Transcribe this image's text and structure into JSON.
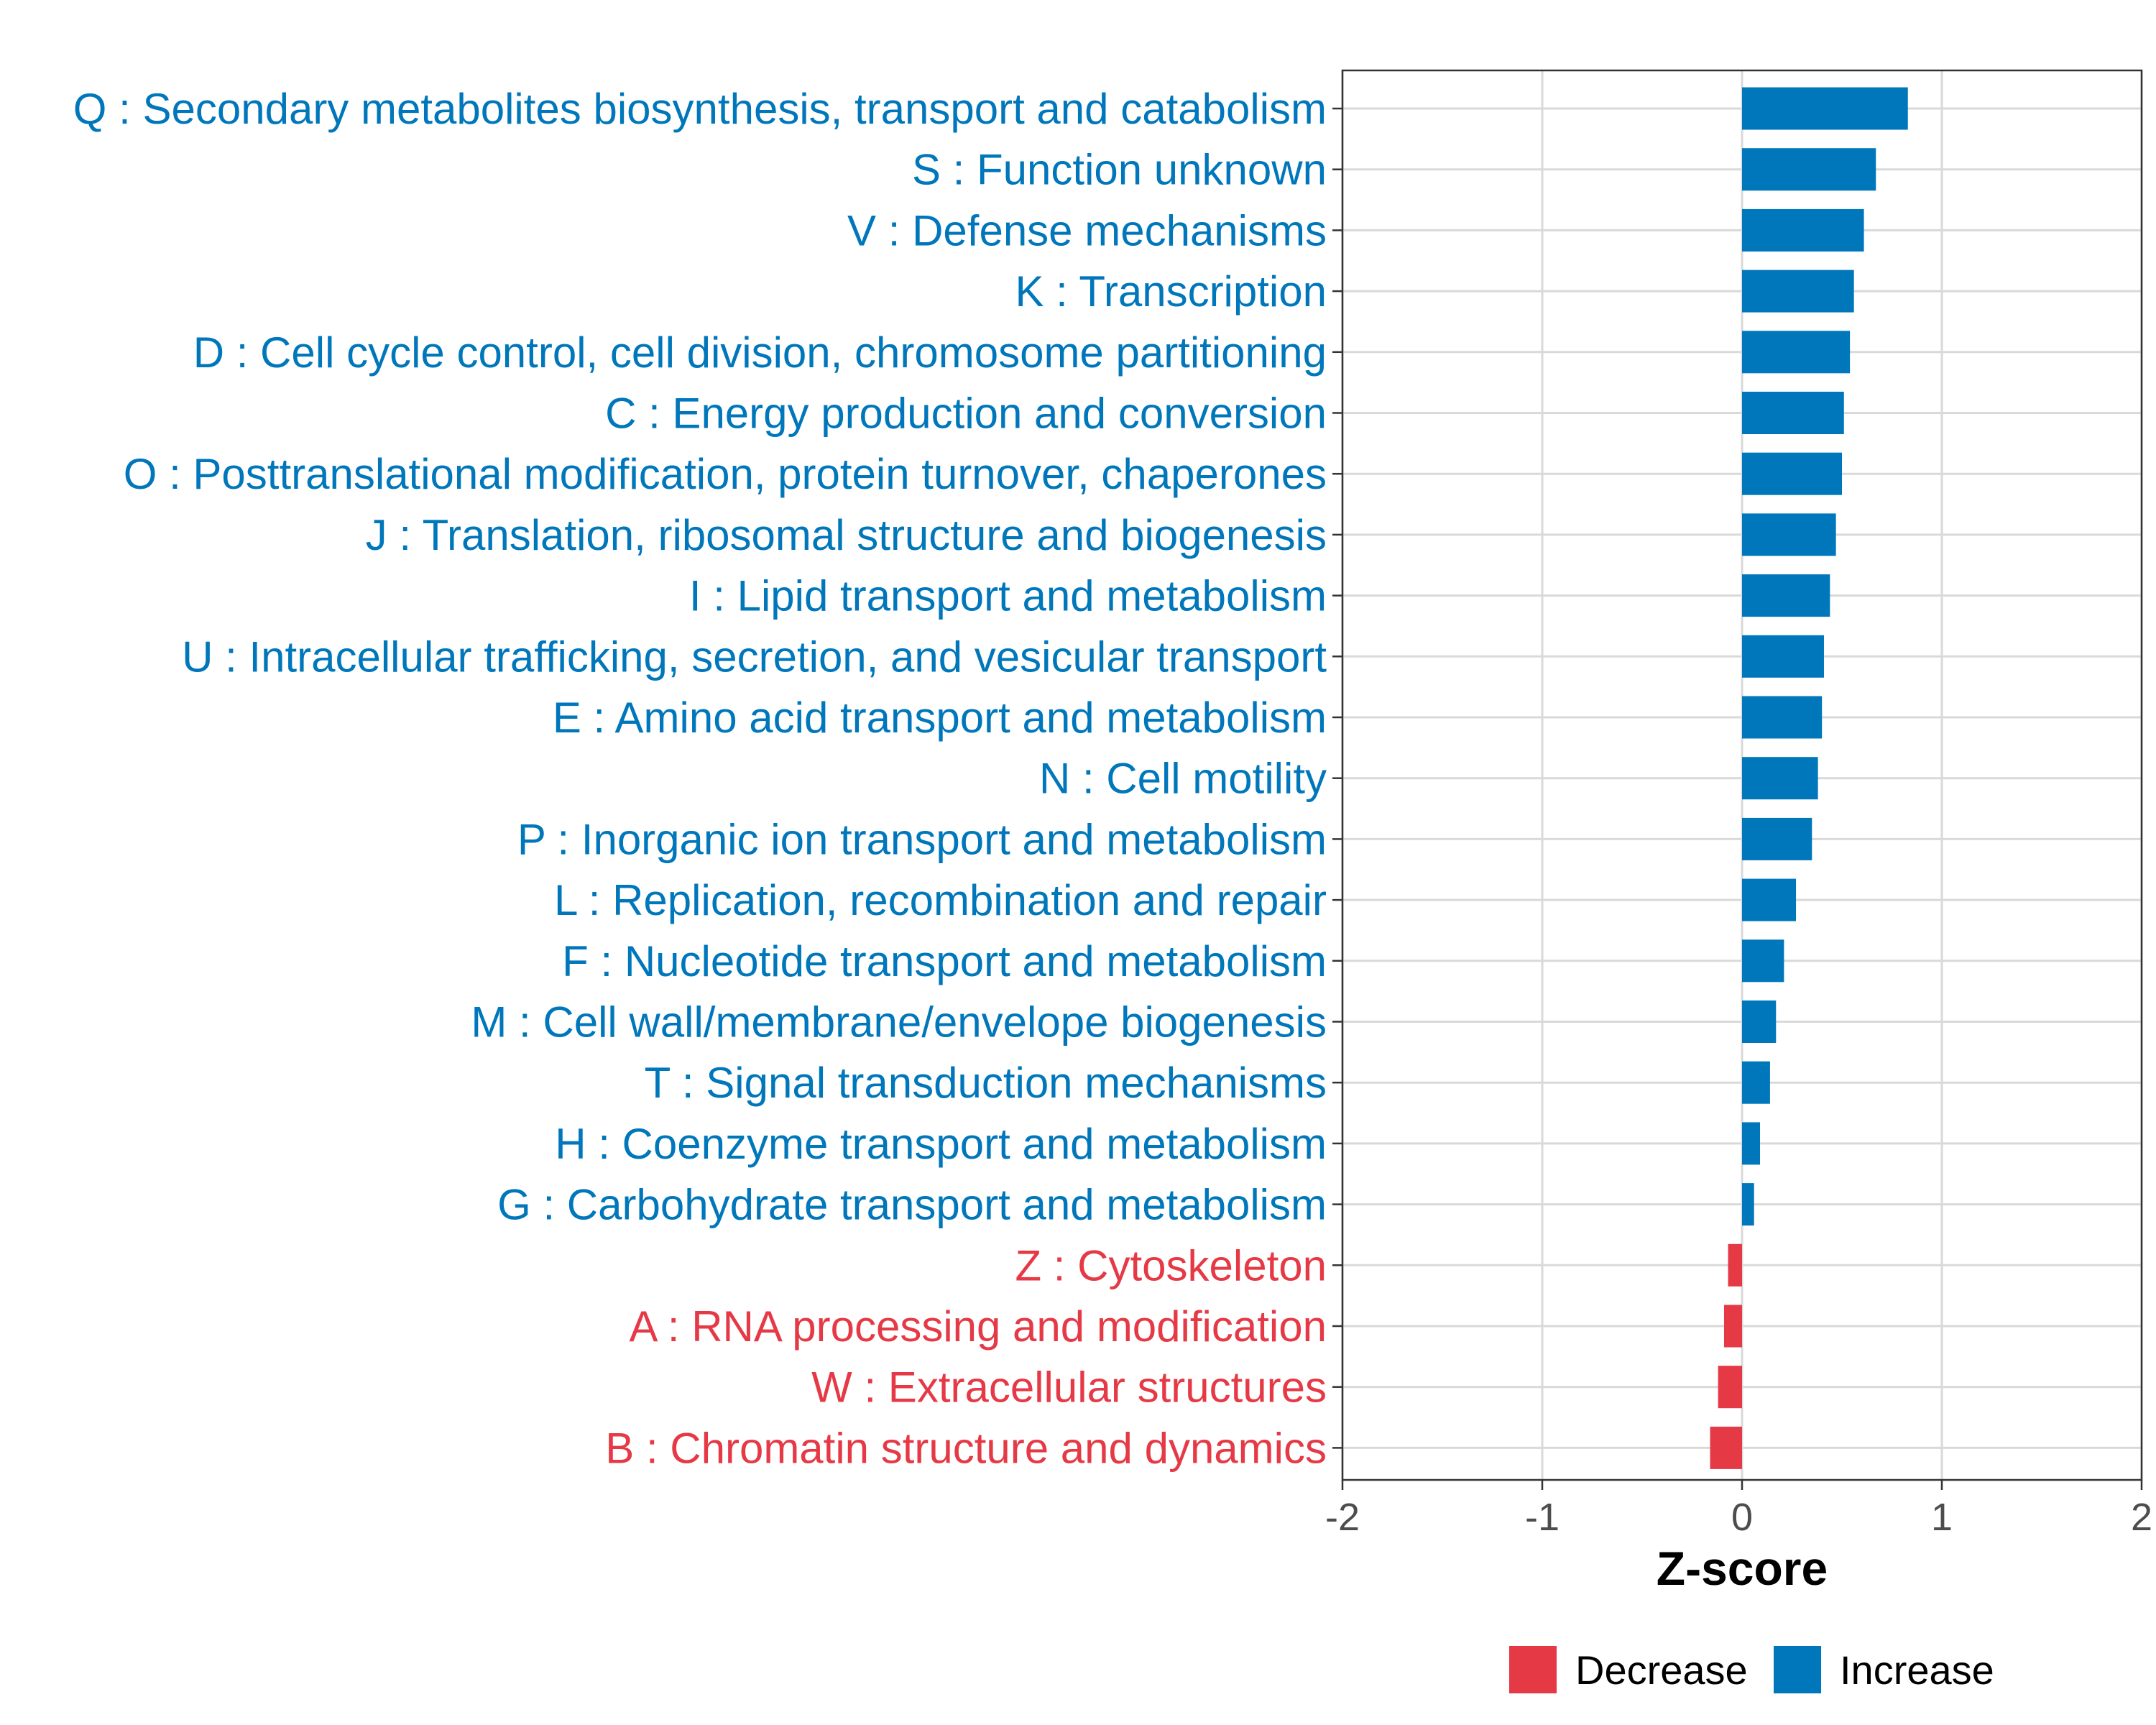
{
  "chart_data": {
    "type": "bar",
    "orientation": "horizontal",
    "xlabel": "Z-score",
    "ylabel": "",
    "xlim": [
      -2,
      2
    ],
    "x_ticks": [
      "-2",
      "-1",
      "0",
      "1",
      "2"
    ],
    "grid": true,
    "legend_position": "bottom",
    "categories": [
      "Q : Secondary metabolites biosynthesis, transport and catabolism",
      "S : Function unknown",
      "V : Defense mechanisms",
      "K : Transcription",
      "D : Cell cycle control, cell division, chromosome partitioning",
      "C : Energy production and conversion",
      "O : Posttranslational modification, protein turnover, chaperones",
      "J : Translation, ribosomal structure and biogenesis",
      "I : Lipid transport and metabolism",
      "U : Intracellular trafficking, secretion, and vesicular transport",
      "E : Amino acid transport and metabolism",
      "N : Cell motility",
      "P : Inorganic ion transport and metabolism",
      "L : Replication, recombination and repair",
      "F : Nucleotide transport and metabolism",
      "M : Cell wall/membrane/envelope biogenesis",
      "T : Signal transduction mechanisms",
      "H : Coenzyme transport and metabolism",
      "G : Carbohydrate transport and metabolism",
      "Z : Cytoskeleton",
      "A : RNA processing and modification",
      "W : Extracellular structures",
      "B : Chromatin structure and dynamics"
    ],
    "values": [
      0.83,
      0.67,
      0.61,
      0.56,
      0.54,
      0.51,
      0.5,
      0.47,
      0.44,
      0.41,
      0.4,
      0.38,
      0.35,
      0.27,
      0.21,
      0.17,
      0.14,
      0.09,
      0.06,
      -0.07,
      -0.09,
      -0.12,
      -0.16
    ],
    "direction": [
      "Increase",
      "Increase",
      "Increase",
      "Increase",
      "Increase",
      "Increase",
      "Increase",
      "Increase",
      "Increase",
      "Increase",
      "Increase",
      "Increase",
      "Increase",
      "Increase",
      "Increase",
      "Increase",
      "Increase",
      "Increase",
      "Increase",
      "Decrease",
      "Decrease",
      "Decrease",
      "Decrease"
    ],
    "legend": [
      {
        "name": "Decrease",
        "color": "#e63946"
      },
      {
        "name": "Increase",
        "color": "#0077bb"
      }
    ]
  }
}
